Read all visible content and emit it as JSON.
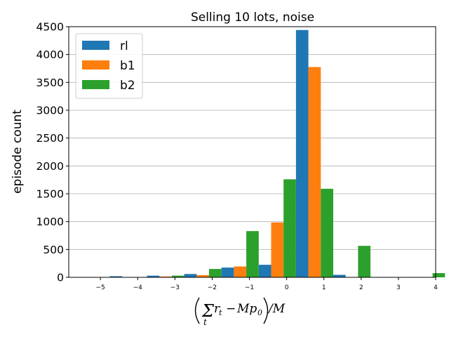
{
  "chart_data": {
    "type": "bar",
    "title": "Selling 10 lots, noise",
    "ylabel": "episode count",
    "xlabel": "(Σ_t r_t − M p_0)/M",
    "xlim": [
      -5.85,
      4.0
    ],
    "ylim": [
      0,
      4500
    ],
    "yticks": [
      0,
      500,
      1000,
      1500,
      2000,
      2500,
      3000,
      3500,
      4000,
      4500
    ],
    "xtick_labels": [
      "−5",
      "−4",
      "−3",
      "−2",
      "−1",
      "0",
      "1",
      "2",
      "3",
      "4"
    ],
    "xticks": [
      -5,
      -4,
      -3,
      -2,
      -1,
      0,
      1,
      2,
      3,
      4
    ],
    "bins": [
      -5.75,
      -4.75,
      -3.75,
      -2.75,
      -1.75,
      -0.75,
      0.25,
      1.25,
      2.25,
      3.25
    ],
    "bin_width": 1.0,
    "grid": "y",
    "legend_position": "top-left",
    "series": [
      {
        "name": "rl",
        "color": "#1f77b4",
        "values": [
          3,
          20,
          30,
          60,
          175,
          225,
          4440,
          45,
          3,
          0
        ]
      },
      {
        "name": "b1",
        "color": "#ff7f0e",
        "values": [
          0,
          0,
          15,
          40,
          195,
          985,
          3775,
          0,
          0,
          0
        ]
      },
      {
        "name": "b2",
        "color": "#2ca02c",
        "values": [
          0,
          0,
          30,
          150,
          830,
          1760,
          1590,
          565,
          0,
          75
        ]
      }
    ]
  }
}
